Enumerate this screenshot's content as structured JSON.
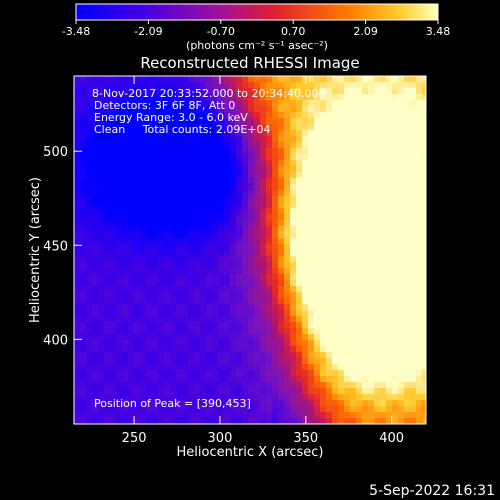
{
  "chart_data": {
    "type": "heatmap",
    "title": "Reconstructed RHESSI Image",
    "xlabel": "Heliocentric X (arcsec)",
    "ylabel": "Heliocentric Y (arcsec)",
    "xlim": [
      215,
      420
    ],
    "ylim": [
      355,
      540
    ],
    "x_ticks": [
      250,
      300,
      350,
      400
    ],
    "y_ticks": [
      400,
      450,
      500
    ],
    "colorbar": {
      "min": -3.48,
      "max": 3.48,
      "ticks": [
        "-3.48",
        "-2.09",
        "-0.70",
        "0.70",
        "2.09",
        "3.48"
      ],
      "unit_label": "(photons cm⁻² s⁻¹ asec⁻²)",
      "colormap": [
        "#0000ff",
        "#7a10d0",
        "#c0207a",
        "#ff4a10",
        "#ffb000",
        "#ffffc0"
      ]
    },
    "annotations": [
      "8-Nov-2017 20:33:52.000 to 20:34:40.000",
      "Detectors: 3F 6F 8F, Att 0",
      "Energy Range: 3.0 - 6.0 keV",
      "Clean     Total counts: 2.09E+04"
    ],
    "peak_label": "Position of Peak = [390,453]",
    "peak": [
      390,
      453
    ],
    "grid": false
  },
  "timestamp": "5-Sep-2022 16:31"
}
